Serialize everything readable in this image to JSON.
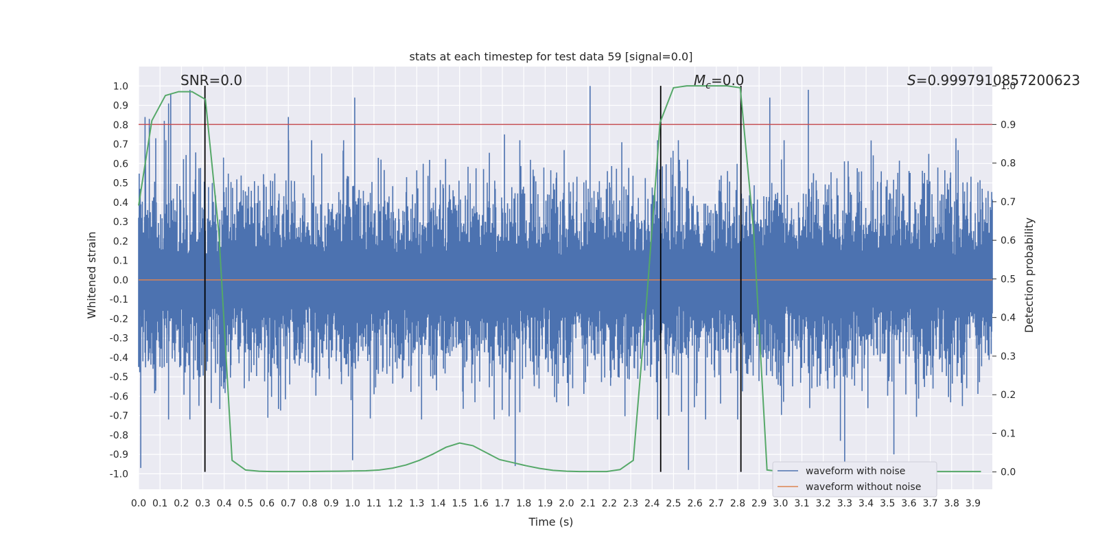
{
  "chart_data": {
    "type": "line",
    "title": "stats at each timestep for test data 59 [signal=0.0]",
    "xlabel": "Time (s)",
    "ylabel_left": "Whitened strain",
    "ylabel_right": "Detection probability",
    "xlim": [
      0.0,
      3.99
    ],
    "ylim_left": [
      -1.08,
      1.1
    ],
    "ylim_right": [
      -0.045,
      1.05
    ],
    "xticks": [
      "0.0",
      "0.1",
      "0.2",
      "0.3",
      "0.4",
      "0.5",
      "0.6",
      "0.7",
      "0.8",
      "0.9",
      "1.0",
      "1.1",
      "1.2",
      "1.3",
      "1.4",
      "1.5",
      "1.6",
      "1.7",
      "1.8",
      "1.9",
      "2.0",
      "2.1",
      "2.2",
      "2.3",
      "2.4",
      "2.5",
      "2.6",
      "2.7",
      "2.8",
      "2.9",
      "3.0",
      "3.1",
      "3.2",
      "3.3",
      "3.4",
      "3.5",
      "3.6",
      "3.7",
      "3.8",
      "3.9"
    ],
    "yticks_left": [
      "1.0",
      "0.9",
      "0.8",
      "0.7",
      "0.6",
      "0.5",
      "0.4",
      "0.3",
      "0.2",
      "0.1",
      "0.0",
      "-0.1",
      "-0.2",
      "-0.3",
      "-0.4",
      "-0.5",
      "-0.6",
      "-0.7",
      "-0.8",
      "-0.9",
      "-1.0"
    ],
    "yticks_right": [
      "1.0",
      "0.9",
      "0.8",
      "0.7",
      "0.6",
      "0.5",
      "0.4",
      "0.3",
      "0.2",
      "0.1",
      "0.0"
    ],
    "annotations": {
      "snr": "SNR=0.0",
      "mc_symbol": "M",
      "mc_sub": "c",
      "mc_value": "=0.0",
      "s_symbol": "S",
      "s_value": "=0.9997910857200623"
    },
    "threshold_line": {
      "axis": "right",
      "value": 0.9,
      "color": "#c44e52"
    },
    "vertical_lines": [
      0.31,
      2.44,
      2.815
    ],
    "series": [
      {
        "name": "waveform with noise",
        "color": "#4c72b0",
        "axis": "left",
        "style": "noise",
        "n_samples": 1600,
        "envelope": 0.2,
        "spikes": [
          {
            "x": 0.03,
            "y": 0.84
          },
          {
            "x": 0.05,
            "y": 0.83
          },
          {
            "x": 0.08,
            "y": 0.73
          },
          {
            "x": 0.12,
            "y": 0.82
          },
          {
            "x": 0.14,
            "y": 0.91
          },
          {
            "x": 0.15,
            "y": 0.96
          },
          {
            "x": 0.24,
            "y": 0.98
          },
          {
            "x": 0.7,
            "y": 0.84
          },
          {
            "x": 1.01,
            "y": 0.94
          },
          {
            "x": 1.71,
            "y": 0.75
          },
          {
            "x": 2.11,
            "y": 1.0
          },
          {
            "x": 2.95,
            "y": 0.94
          },
          {
            "x": 3.13,
            "y": 0.98
          },
          {
            "x": 3.82,
            "y": 0.73
          },
          {
            "x": 0.01,
            "y": -0.97
          },
          {
            "x": 0.14,
            "y": -0.72
          },
          {
            "x": 1.0,
            "y": -0.93
          },
          {
            "x": 1.76,
            "y": -0.96
          },
          {
            "x": 2.57,
            "y": -0.98
          },
          {
            "x": 3.3,
            "y": -0.98
          },
          {
            "x": 3.28,
            "y": -0.83
          },
          {
            "x": 3.53,
            "y": -0.9
          }
        ]
      },
      {
        "name": "waveform without noise",
        "color": "#dd8452",
        "axis": "left",
        "style": "flat",
        "value": 0.0
      },
      {
        "name": "detection probability",
        "color": "#55a868",
        "axis": "right",
        "legend": false,
        "x": [
          0.0,
          0.062,
          0.125,
          0.187,
          0.25,
          0.312,
          0.375,
          0.437,
          0.5,
          0.562,
          0.625,
          0.687,
          0.75,
          0.812,
          0.875,
          0.937,
          1.0,
          1.062,
          1.125,
          1.187,
          1.25,
          1.312,
          1.375,
          1.437,
          1.5,
          1.562,
          1.625,
          1.687,
          1.75,
          1.812,
          1.875,
          1.937,
          2.0,
          2.062,
          2.125,
          2.187,
          2.25,
          2.312,
          2.375,
          2.437,
          2.5,
          2.562,
          2.625,
          2.687,
          2.75,
          2.812,
          2.875,
          2.937,
          3.0,
          3.062,
          3.125,
          3.187,
          3.25,
          3.312,
          3.375,
          3.437,
          3.5,
          3.562,
          3.625,
          3.687,
          3.75,
          3.812,
          3.875,
          3.937
        ],
        "y": [
          0.69,
          0.91,
          0.975,
          0.985,
          0.985,
          0.965,
          0.62,
          0.03,
          0.005,
          0.002,
          0.001,
          0.001,
          0.001,
          0.0012,
          0.0015,
          0.002,
          0.0025,
          0.003,
          0.005,
          0.01,
          0.018,
          0.03,
          0.046,
          0.064,
          0.075,
          0.068,
          0.05,
          0.032,
          0.024,
          0.016,
          0.009,
          0.004,
          0.002,
          0.001,
          0.001,
          0.001,
          0.006,
          0.03,
          0.45,
          0.905,
          0.995,
          1.0,
          1.0,
          1.0,
          1.0,
          0.995,
          0.62,
          0.005,
          0.001,
          0.001,
          0.001,
          0.001,
          0.001,
          0.001,
          0.001,
          0.001,
          0.001,
          0.001,
          0.001,
          0.001,
          0.001,
          0.001,
          0.001,
          0.001
        ]
      }
    ],
    "legend": {
      "placement": "lower-right",
      "entries": [
        {
          "label": "waveform with noise",
          "color": "#4c72b0"
        },
        {
          "label": "waveform without noise",
          "color": "#dd8452"
        }
      ]
    },
    "background": "#eaeaf2",
    "grid": true
  }
}
